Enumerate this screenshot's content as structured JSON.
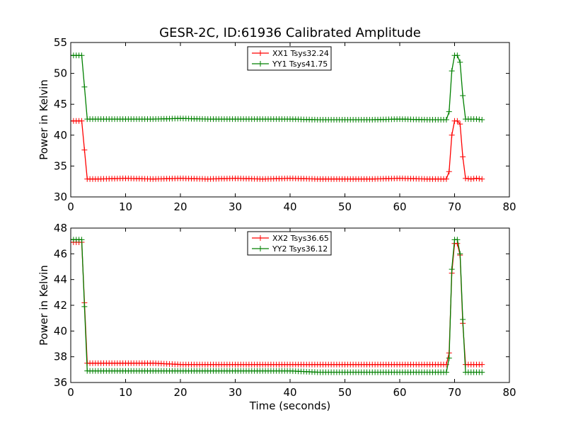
{
  "figure": {
    "title": "GESR-2C, ID:61936 Calibrated Amplitude"
  },
  "chart_data": [
    {
      "type": "line",
      "title": "GESR-2C, ID:61936 Calibrated Amplitude",
      "xlabel": "",
      "ylabel": "Power in Kelvin",
      "xlim": [
        0,
        80
      ],
      "ylim": [
        30,
        55
      ],
      "xticks": [
        "0",
        "10",
        "20",
        "30",
        "40",
        "50",
        "60",
        "70",
        "80"
      ],
      "yticks": [
        "30",
        "35",
        "40",
        "45",
        "50",
        "55"
      ],
      "xtick_values": [
        0,
        10,
        20,
        30,
        40,
        50,
        60,
        70,
        80
      ],
      "ytick_values": [
        30,
        35,
        40,
        45,
        50,
        55
      ],
      "grid": false,
      "legend_position": "top-center",
      "marker": "+",
      "series": [
        {
          "name": "XX1 Tsys32.24",
          "color": "#ff0000",
          "points": [
            [
              0,
              42.3
            ],
            [
              0.5,
              42.3
            ],
            [
              1,
              42.3
            ],
            [
              1.5,
              42.3
            ],
            [
              2,
              42.3
            ],
            [
              2.5,
              37.6
            ],
            [
              3,
              32.9
            ],
            [
              5,
              32.9
            ],
            [
              10,
              33.0
            ],
            [
              15,
              32.9
            ],
            [
              20,
              33.0
            ],
            [
              25,
              32.9
            ],
            [
              30,
              33.0
            ],
            [
              35,
              32.9
            ],
            [
              40,
              33.0
            ],
            [
              45,
              32.9
            ],
            [
              50,
              32.9
            ],
            [
              55,
              32.9
            ],
            [
              60,
              33.0
            ],
            [
              65,
              32.9
            ],
            [
              68.5,
              32.9
            ],
            [
              69,
              34.1
            ],
            [
              69.5,
              40.0
            ],
            [
              70,
              42.3
            ],
            [
              70.5,
              42.3
            ],
            [
              71,
              41.8
            ],
            [
              71.5,
              36.5
            ],
            [
              72,
              33.0
            ],
            [
              73,
              32.9
            ],
            [
              74,
              33.0
            ],
            [
              75,
              32.9
            ]
          ]
        },
        {
          "name": "YY1 Tsys41.75",
          "color": "#008000",
          "points": [
            [
              0,
              52.9
            ],
            [
              0.5,
              52.9
            ],
            [
              1,
              52.9
            ],
            [
              1.5,
              52.9
            ],
            [
              2,
              52.9
            ],
            [
              2.5,
              47.8
            ],
            [
              3,
              42.6
            ],
            [
              5,
              42.6
            ],
            [
              10,
              42.6
            ],
            [
              15,
              42.6
            ],
            [
              20,
              42.7
            ],
            [
              25,
              42.6
            ],
            [
              30,
              42.6
            ],
            [
              35,
              42.6
            ],
            [
              40,
              42.6
            ],
            [
              45,
              42.5
            ],
            [
              50,
              42.5
            ],
            [
              55,
              42.5
            ],
            [
              60,
              42.6
            ],
            [
              65,
              42.5
            ],
            [
              68.5,
              42.5
            ],
            [
              69,
              43.8
            ],
            [
              69.5,
              50.4
            ],
            [
              70,
              52.9
            ],
            [
              70.5,
              52.9
            ],
            [
              71,
              51.8
            ],
            [
              71.5,
              46.4
            ],
            [
              72,
              42.6
            ],
            [
              73,
              42.6
            ],
            [
              74,
              42.6
            ],
            [
              75,
              42.5
            ]
          ]
        }
      ]
    },
    {
      "type": "line",
      "title": "",
      "xlabel": "Time (seconds)",
      "ylabel": "Power in Kelvin",
      "xlim": [
        0,
        80
      ],
      "ylim": [
        36,
        48
      ],
      "xticks": [
        "0",
        "10",
        "20",
        "30",
        "40",
        "50",
        "60",
        "70",
        "80"
      ],
      "yticks": [
        "36",
        "38",
        "40",
        "42",
        "44",
        "46",
        "48"
      ],
      "xtick_values": [
        0,
        10,
        20,
        30,
        40,
        50,
        60,
        70,
        80
      ],
      "ytick_values": [
        36,
        38,
        40,
        42,
        44,
        46,
        48
      ],
      "grid": false,
      "legend_position": "top-center",
      "marker": "+",
      "series": [
        {
          "name": "XX2 Tsys36.65",
          "color": "#ff0000",
          "points": [
            [
              0,
              46.9
            ],
            [
              0.5,
              46.9
            ],
            [
              1,
              46.9
            ],
            [
              1.5,
              46.9
            ],
            [
              2,
              46.9
            ],
            [
              2.5,
              42.2
            ],
            [
              3,
              37.5
            ],
            [
              5,
              37.5
            ],
            [
              10,
              37.5
            ],
            [
              15,
              37.5
            ],
            [
              20,
              37.4
            ],
            [
              25,
              37.4
            ],
            [
              30,
              37.4
            ],
            [
              35,
              37.4
            ],
            [
              40,
              37.4
            ],
            [
              45,
              37.4
            ],
            [
              50,
              37.4
            ],
            [
              55,
              37.4
            ],
            [
              60,
              37.4
            ],
            [
              65,
              37.4
            ],
            [
              68.5,
              37.4
            ],
            [
              69,
              38.3
            ],
            [
              69.5,
              44.5
            ],
            [
              70,
              46.8
            ],
            [
              70.5,
              46.8
            ],
            [
              71,
              45.9
            ],
            [
              71.5,
              40.6
            ],
            [
              72,
              37.4
            ],
            [
              73,
              37.4
            ],
            [
              74,
              37.4
            ],
            [
              75,
              37.4
            ]
          ]
        },
        {
          "name": "YY2 Tsys36.12",
          "color": "#008000",
          "points": [
            [
              0,
              47.1
            ],
            [
              0.5,
              47.1
            ],
            [
              1,
              47.1
            ],
            [
              1.5,
              47.1
            ],
            [
              2,
              47.1
            ],
            [
              2.5,
              41.9
            ],
            [
              3,
              36.9
            ],
            [
              5,
              36.9
            ],
            [
              10,
              36.9
            ],
            [
              15,
              36.9
            ],
            [
              20,
              36.9
            ],
            [
              25,
              36.9
            ],
            [
              30,
              36.9
            ],
            [
              35,
              36.9
            ],
            [
              40,
              36.9
            ],
            [
              45,
              36.8
            ],
            [
              50,
              36.8
            ],
            [
              55,
              36.8
            ],
            [
              60,
              36.8
            ],
            [
              65,
              36.8
            ],
            [
              68.5,
              36.8
            ],
            [
              69,
              37.9
            ],
            [
              69.5,
              44.8
            ],
            [
              70,
              47.1
            ],
            [
              70.5,
              47.1
            ],
            [
              71,
              46.0
            ],
            [
              71.5,
              40.9
            ],
            [
              72,
              36.8
            ],
            [
              73,
              36.8
            ],
            [
              74,
              36.8
            ],
            [
              75,
              36.8
            ]
          ]
        }
      ]
    }
  ]
}
